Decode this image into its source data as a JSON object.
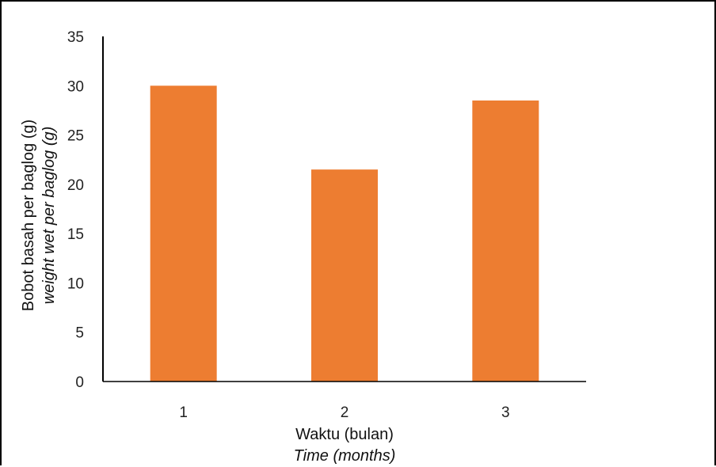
{
  "chart_data": {
    "type": "bar",
    "categories": [
      "1",
      "2",
      "3"
    ],
    "values": [
      30,
      21.5,
      28.5
    ],
    "xlabel": "Waktu (bulan)",
    "xlabel_secondary": "Time (months)",
    "ylabel": "Bobot basah per baglog (g)",
    "ylabel_secondary": "weight wet per baglog (g)",
    "ylim": [
      0,
      35
    ],
    "yticks": [
      0,
      5,
      10,
      15,
      20,
      25,
      30,
      35
    ],
    "grid": false,
    "legend": "none",
    "bar_color": "#ED7D31",
    "axis_color": "#000000"
  }
}
